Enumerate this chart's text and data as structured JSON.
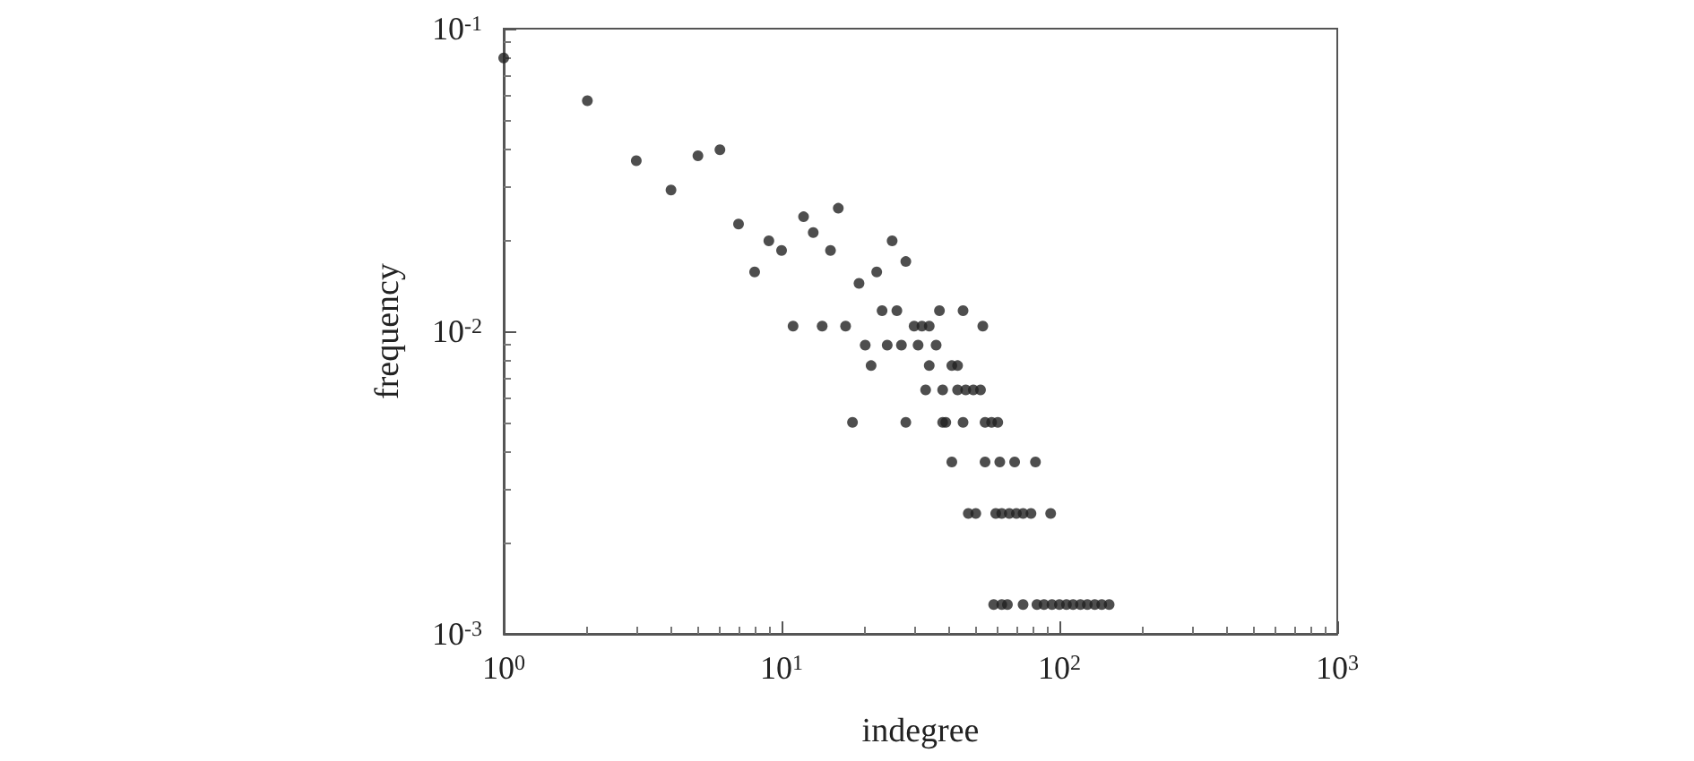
{
  "chart_data": {
    "type": "scatter",
    "xlabel": "indegree",
    "ylabel": "frequency",
    "log": "xy",
    "grid": false,
    "marker": "circle",
    "xlim": [
      1,
      1000
    ],
    "ylim": [
      0.001,
      0.1
    ],
    "xticks": [
      {
        "value": 1,
        "label": "10$^{0}$"
      },
      {
        "value": 10,
        "label": "10$^{1}$"
      },
      {
        "value": 100,
        "label": "10$^{2}$"
      },
      {
        "value": 1000,
        "label": "10$^{3}$"
      }
    ],
    "yticks": [
      {
        "value": 0.001,
        "label": "10$^{-3}$"
      },
      {
        "value": 0.01,
        "label": "10$^{-2}$"
      },
      {
        "value": 0.1,
        "label": "10$^{-1}$"
      }
    ],
    "series": [
      {
        "color": "#222222",
        "x": [
          1,
          2,
          3,
          4,
          5,
          6,
          7,
          8,
          9,
          10,
          11,
          12,
          13,
          14,
          15,
          16,
          17,
          19,
          22,
          23,
          25,
          26,
          28,
          30,
          32,
          34,
          53,
          37,
          45,
          20,
          24,
          27,
          31,
          36,
          21,
          34,
          41,
          43,
          33,
          38,
          43,
          46,
          49,
          52,
          18,
          28,
          38,
          39,
          45,
          54,
          57,
          60,
          41,
          54,
          61,
          69,
          82,
          47,
          50,
          59,
          62,
          66,
          70,
          74,
          79,
          93,
          58,
          62,
          65,
          74,
          83,
          88,
          94,
          100,
          106,
          112,
          119,
          126,
          134,
          142,
          151
        ],
        "values": [
          0.08,
          0.0578,
          0.0366,
          0.0293,
          0.038,
          0.0398,
          0.0226,
          0.0157,
          0.0199,
          0.0185,
          0.0104,
          0.0239,
          0.0212,
          0.0104,
          0.0185,
          0.0255,
          0.0104,
          0.0144,
          0.0157,
          0.0117,
          0.0199,
          0.0117,
          0.017,
          0.0104,
          0.0104,
          0.0104,
          0.0104,
          0.0117,
          0.0117,
          0.009,
          0.009,
          0.009,
          0.009,
          0.009,
          0.0077,
          0.0077,
          0.0077,
          0.0077,
          0.0064,
          0.0064,
          0.0064,
          0.0064,
          0.0064,
          0.0064,
          0.005,
          0.005,
          0.005,
          0.005,
          0.005,
          0.005,
          0.005,
          0.005,
          0.0037,
          0.0037,
          0.0037,
          0.0037,
          0.0037,
          0.0025,
          0.0025,
          0.0025,
          0.0025,
          0.0025,
          0.0025,
          0.0025,
          0.0025,
          0.0025,
          0.00125,
          0.00125,
          0.00125,
          0.00125,
          0.00125,
          0.00125,
          0.00125,
          0.00125,
          0.00125,
          0.00125,
          0.00125,
          0.00125,
          0.00125,
          0.00125,
          0.00125
        ]
      }
    ]
  }
}
